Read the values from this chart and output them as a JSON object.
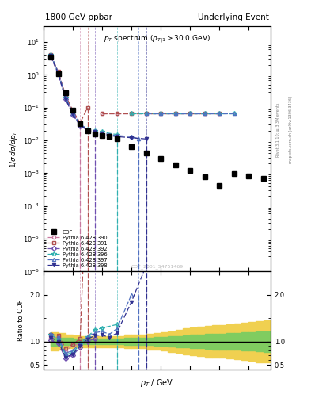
{
  "title_left": "1800 GeV ppbar",
  "title_right": "Underlying Event",
  "subtitle": "p_T spectrum (p_{T|1} > 30.0 GeV)",
  "ylabel_main": "1/σ dσ/dp_T",
  "ylabel_ratio": "Ratio to CDF",
  "xlabel": "p_T / GeV",
  "watermark": "CDF_2001_S4751469",
  "right_label": "Rivet 3.1.10; ≥ 3.3M events",
  "right_label2": "mcplots.cern.ch [arXiv:1306.3436]",
  "color_390": "#c878a0",
  "color_391": "#b05050",
  "color_392": "#7050b0",
  "color_396": "#30b0b0",
  "color_397": "#5070c0",
  "color_398": "#303090",
  "xlim": [
    0,
    15.5
  ],
  "ylim_main": [
    1e-06,
    30
  ],
  "ylim_ratio": [
    0.4,
    2.5
  ]
}
